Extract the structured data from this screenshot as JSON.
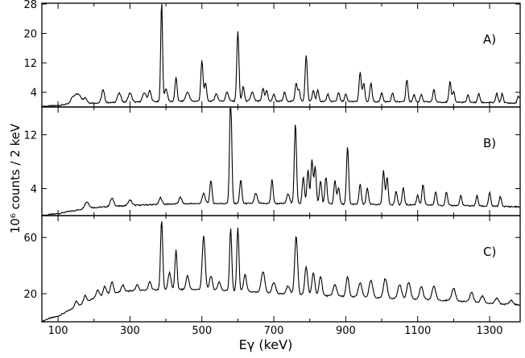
{
  "figure": {
    "ylabel": "10⁶ counts / 2 keV",
    "xlabel": "Eγ  (keV)"
  },
  "chart_data": [
    {
      "type": "line",
      "panel_label": "A)",
      "x_unit": "keV",
      "xlim": [
        55,
        1385
      ],
      "ylim": [
        0,
        28
      ],
      "xticks": [
        100,
        300,
        500,
        700,
        900,
        1100,
        1300
      ],
      "yticks": [
        4,
        12,
        20,
        28
      ],
      "background": [
        [
          55,
          0
        ],
        [
          60,
          0.2
        ],
        [
          100,
          0.4
        ],
        [
          140,
          1
        ],
        [
          200,
          1.1
        ],
        [
          300,
          1.3
        ],
        [
          400,
          1.5
        ],
        [
          500,
          1.6
        ],
        [
          700,
          1.6
        ],
        [
          900,
          1.5
        ],
        [
          1100,
          1.4
        ],
        [
          1300,
          1.2
        ],
        [
          1385,
          1.0
        ]
      ],
      "peaks": [
        [
          140,
          1.5,
          5
        ],
        [
          150,
          2.0,
          5
        ],
        [
          160,
          2.0,
          5
        ],
        [
          175,
          1.5,
          5
        ],
        [
          225,
          3.5,
          4
        ],
        [
          270,
          2.5,
          5
        ],
        [
          300,
          2.5,
          5
        ],
        [
          340,
          2.5,
          5
        ],
        [
          355,
          3.0,
          4
        ],
        [
          388,
          27.5,
          2.5
        ],
        [
          400,
          3.5,
          4
        ],
        [
          428,
          6.5,
          3
        ],
        [
          460,
          2.5,
          5
        ],
        [
          500,
          11,
          3
        ],
        [
          510,
          5,
          3
        ],
        [
          540,
          2,
          4
        ],
        [
          570,
          2.5,
          4
        ],
        [
          600,
          19,
          3
        ],
        [
          615,
          4,
          3
        ],
        [
          640,
          2.5,
          4
        ],
        [
          670,
          3.5,
          3
        ],
        [
          680,
          3,
          3
        ],
        [
          700,
          2,
          3
        ],
        [
          730,
          2.5,
          3
        ],
        [
          762,
          5,
          3
        ],
        [
          770,
          3,
          3
        ],
        [
          790,
          12.5,
          3
        ],
        [
          810,
          3,
          3
        ],
        [
          822,
          3,
          3
        ],
        [
          850,
          2,
          3
        ],
        [
          880,
          2.5,
          3
        ],
        [
          900,
          2,
          3
        ],
        [
          940,
          8,
          3
        ],
        [
          950,
          5,
          3
        ],
        [
          970,
          5,
          3
        ],
        [
          1000,
          2.5,
          3
        ],
        [
          1030,
          2.5,
          3
        ],
        [
          1070,
          6,
          3
        ],
        [
          1090,
          2,
          3
        ],
        [
          1110,
          2,
          3
        ],
        [
          1145,
          3.5,
          3
        ],
        [
          1190,
          5.5,
          3
        ],
        [
          1200,
          3,
          3
        ],
        [
          1240,
          2,
          3
        ],
        [
          1270,
          2.5,
          3
        ],
        [
          1320,
          2.5,
          3
        ],
        [
          1335,
          2.5,
          3
        ],
        [
          1380,
          2,
          3
        ]
      ]
    },
    {
      "type": "line",
      "panel_label": "B)",
      "x_unit": "keV",
      "xlim": [
        55,
        1385
      ],
      "ylim": [
        0,
        16
      ],
      "xticks": [
        100,
        300,
        500,
        700,
        900,
        1100,
        1300
      ],
      "yticks": [
        4,
        12
      ],
      "background": [
        [
          55,
          0
        ],
        [
          100,
          0.3
        ],
        [
          150,
          0.8
        ],
        [
          200,
          1.2
        ],
        [
          300,
          1.5
        ],
        [
          400,
          1.7
        ],
        [
          500,
          1.8
        ],
        [
          700,
          1.8
        ],
        [
          900,
          1.7
        ],
        [
          1100,
          1.6
        ],
        [
          1300,
          1.4
        ],
        [
          1385,
          1.3
        ]
      ],
      "peaks": [
        [
          180,
          1.0,
          6
        ],
        [
          250,
          1.2,
          5
        ],
        [
          300,
          0.8,
          5
        ],
        [
          385,
          1.0,
          4
        ],
        [
          440,
          1.0,
          4
        ],
        [
          505,
          1.5,
          4
        ],
        [
          525,
          3.5,
          3
        ],
        [
          580,
          16,
          3
        ],
        [
          608,
          3.5,
          3
        ],
        [
          650,
          1.5,
          4
        ],
        [
          695,
          3.5,
          3
        ],
        [
          740,
          1.5,
          4
        ],
        [
          760,
          12,
          3
        ],
        [
          782,
          4,
          3
        ],
        [
          795,
          5,
          3
        ],
        [
          806,
          6.5,
          3
        ],
        [
          815,
          5.5,
          3
        ],
        [
          830,
          3.5,
          3
        ],
        [
          845,
          4,
          3
        ],
        [
          870,
          3.5,
          3
        ],
        [
          880,
          2.5,
          3
        ],
        [
          905,
          8.5,
          3
        ],
        [
          940,
          3,
          3
        ],
        [
          960,
          2.5,
          3
        ],
        [
          1005,
          5,
          3
        ],
        [
          1015,
          4,
          3
        ],
        [
          1040,
          2,
          3
        ],
        [
          1060,
          2.5,
          3
        ],
        [
          1100,
          1.5,
          3
        ],
        [
          1115,
          3,
          3
        ],
        [
          1150,
          2,
          3
        ],
        [
          1180,
          2,
          3
        ],
        [
          1220,
          1.5,
          3
        ],
        [
          1265,
          1.5,
          3
        ],
        [
          1300,
          2,
          3
        ],
        [
          1330,
          1.5,
          3
        ]
      ]
    },
    {
      "type": "line",
      "panel_label": "C)",
      "x_unit": "keV",
      "xlim": [
        55,
        1385
      ],
      "ylim": [
        0,
        75
      ],
      "xticks": [
        100,
        300,
        500,
        700,
        900,
        1100,
        1300
      ],
      "yticks": [
        20,
        60
      ],
      "background": [
        [
          55,
          0
        ],
        [
          70,
          2
        ],
        [
          100,
          4
        ],
        [
          130,
          8
        ],
        [
          160,
          12
        ],
        [
          200,
          17
        ],
        [
          240,
          20
        ],
        [
          300,
          22
        ],
        [
          400,
          23
        ],
        [
          500,
          23
        ],
        [
          600,
          22
        ],
        [
          700,
          20
        ],
        [
          800,
          19
        ],
        [
          900,
          18
        ],
        [
          1000,
          17
        ],
        [
          1100,
          16
        ],
        [
          1200,
          15
        ],
        [
          1300,
          13
        ],
        [
          1385,
          12
        ]
      ],
      "peaks": [
        [
          150,
          4,
          4
        ],
        [
          175,
          5,
          4
        ],
        [
          210,
          5,
          4
        ],
        [
          230,
          6,
          4
        ],
        [
          250,
          8,
          4
        ],
        [
          280,
          5,
          4
        ],
        [
          320,
          4,
          4
        ],
        [
          355,
          6,
          4
        ],
        [
          388,
          50,
          3
        ],
        [
          410,
          12,
          4
        ],
        [
          428,
          28,
          3
        ],
        [
          460,
          10,
          4
        ],
        [
          505,
          38,
          4
        ],
        [
          525,
          10,
          4
        ],
        [
          548,
          6,
          4
        ],
        [
          580,
          44,
          3
        ],
        [
          600,
          45,
          3
        ],
        [
          620,
          12,
          4
        ],
        [
          670,
          15,
          5
        ],
        [
          700,
          8,
          5
        ],
        [
          740,
          6,
          5
        ],
        [
          762,
          42,
          4
        ],
        [
          790,
          20,
          4
        ],
        [
          810,
          16,
          4
        ],
        [
          830,
          14,
          4
        ],
        [
          870,
          8,
          5
        ],
        [
          905,
          14,
          4
        ],
        [
          940,
          10,
          5
        ],
        [
          970,
          12,
          5
        ],
        [
          1010,
          14,
          5
        ],
        [
          1050,
          10,
          5
        ],
        [
          1075,
          12,
          5
        ],
        [
          1110,
          9,
          5
        ],
        [
          1145,
          10,
          5
        ],
        [
          1200,
          9,
          5
        ],
        [
          1250,
          7,
          5
        ],
        [
          1280,
          5,
          5
        ],
        [
          1320,
          4,
          5
        ],
        [
          1360,
          3,
          5
        ]
      ]
    }
  ]
}
